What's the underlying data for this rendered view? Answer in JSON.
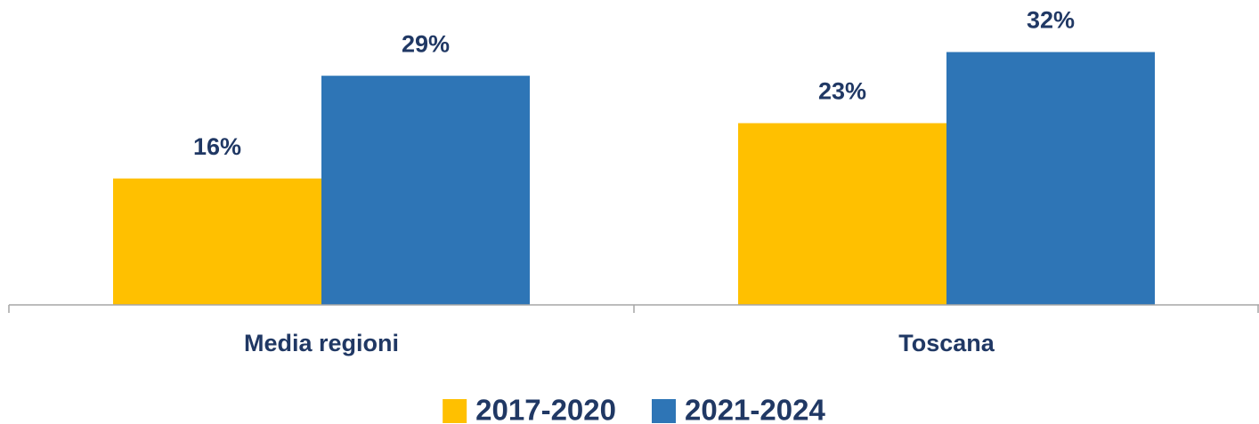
{
  "chart_data": {
    "type": "bar",
    "categories": [
      "Media regioni",
      "Toscana"
    ],
    "series": [
      {
        "name": "2017-2020",
        "color": "#FFC000",
        "values": [
          16,
          23
        ],
        "value_labels": [
          "16%",
          "23%"
        ]
      },
      {
        "name": "2021-2024",
        "color": "#2E75B6",
        "values": [
          29,
          32
        ],
        "value_labels": [
          "29%",
          "32%"
        ]
      }
    ],
    "ylim": [
      0,
      36
    ],
    "legend": "bottom"
  }
}
